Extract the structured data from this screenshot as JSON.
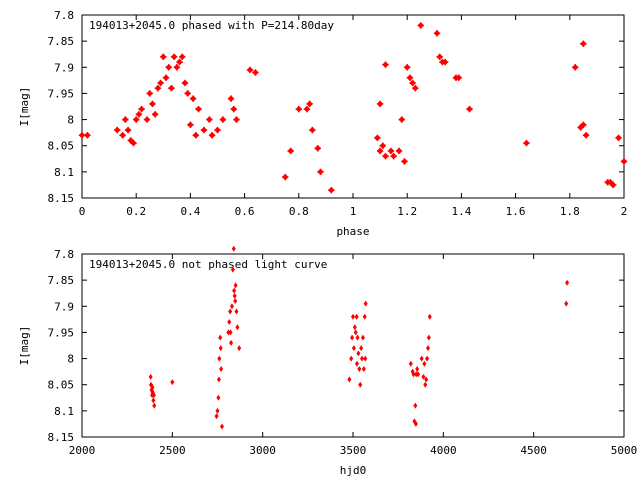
{
  "chart_data": [
    {
      "type": "scatter",
      "title": "194013+2045.0 phased with P=214.80day",
      "xlabel": "phase",
      "ylabel": "I[mag]",
      "xlim": [
        0,
        2
      ],
      "ylim": [
        7.8,
        8.15
      ],
      "y_inverted": true,
      "x_ticks": [
        "0",
        "0.2",
        "0.4",
        "0.6",
        "0.8",
        "1",
        "1.2",
        "1.4",
        "1.6",
        "1.8",
        "2"
      ],
      "y_ticks": [
        "7.8",
        "7.85",
        "7.9",
        "7.95",
        "8",
        "8.05",
        "8.1",
        "8.15"
      ],
      "grid": false,
      "marker_color": "#ff0000",
      "series": [
        {
          "x": [
            0.0,
            0.02,
            0.13,
            0.15,
            0.16,
            0.17,
            0.18,
            0.19,
            0.2,
            0.21,
            0.22,
            0.24,
            0.25,
            0.26,
            0.27,
            0.28,
            0.29,
            0.3,
            0.31,
            0.32,
            0.33,
            0.34,
            0.35,
            0.36,
            0.37,
            0.38,
            0.39,
            0.4,
            0.41,
            0.42,
            0.43,
            0.45,
            0.47,
            0.48,
            0.5,
            0.52,
            0.55,
            0.56,
            0.57,
            0.62,
            0.64,
            0.75,
            0.77,
            0.8,
            0.83,
            0.84,
            0.85,
            0.87,
            0.88,
            0.92,
            1.09,
            1.1,
            1.1,
            1.11,
            1.12,
            1.12,
            1.14,
            1.15,
            1.17,
            1.18,
            1.19,
            1.2,
            1.21,
            1.22,
            1.23,
            1.25,
            1.31,
            1.32,
            1.33,
            1.34,
            1.38,
            1.39,
            1.43,
            1.64,
            1.82,
            1.84,
            1.85,
            1.85,
            1.86,
            1.94,
            1.95,
            1.96,
            1.98,
            2.0
          ],
          "y": [
            8.03,
            8.03,
            8.02,
            8.03,
            8.0,
            8.02,
            8.04,
            8.045,
            8.0,
            7.99,
            7.98,
            8.0,
            7.95,
            7.97,
            7.99,
            7.94,
            7.93,
            7.88,
            7.92,
            7.9,
            7.94,
            7.88,
            7.9,
            7.89,
            7.88,
            7.93,
            7.95,
            8.01,
            7.96,
            8.03,
            7.98,
            8.02,
            8.0,
            8.03,
            8.02,
            8.0,
            7.96,
            7.98,
            8.0,
            7.905,
            7.91,
            8.11,
            8.06,
            7.98,
            7.98,
            7.97,
            8.02,
            8.055,
            8.1,
            8.135,
            8.035,
            7.97,
            8.06,
            8.05,
            7.895,
            8.07,
            8.06,
            8.07,
            8.06,
            8.0,
            8.08,
            7.9,
            7.92,
            7.93,
            7.94,
            7.82,
            7.835,
            7.88,
            7.89,
            7.89,
            7.92,
            7.92,
            7.98,
            8.045,
            7.9,
            8.015,
            7.855,
            8.01,
            8.03,
            8.12,
            8.12,
            8.125,
            8.035,
            8.08
          ]
        }
      ]
    },
    {
      "type": "scatter",
      "title": "194013+2045.0 not phased light curve",
      "xlabel": "hjd0",
      "ylabel": "I[mag]",
      "xlim": [
        2000,
        5000
      ],
      "ylim": [
        7.8,
        8.15
      ],
      "y_inverted": true,
      "x_ticks": [
        "2000",
        "2500",
        "3000",
        "3500",
        "4000",
        "4500",
        "5000"
      ],
      "y_ticks": [
        "7.8",
        "7.85",
        "7.9",
        "7.95",
        "8",
        "8.05",
        "8.1",
        "8.15"
      ],
      "grid": false,
      "marker_color": "#ff0000",
      "series": [
        {
          "x": [
            2380,
            2382,
            2385,
            2388,
            2390,
            2392,
            2395,
            2398,
            2400,
            2500,
            2745,
            2750,
            2755,
            2758,
            2760,
            2765,
            2768,
            2770,
            2775,
            2810,
            2815,
            2820,
            2822,
            2825,
            2830,
            2835,
            2840,
            2842,
            2845,
            2848,
            2850,
            2855,
            2860,
            2870,
            3480,
            3490,
            3495,
            3500,
            3505,
            3510,
            3515,
            3520,
            3522,
            3525,
            3530,
            3535,
            3540,
            3545,
            3550,
            3555,
            3560,
            3565,
            3568,
            3570,
            3820,
            3830,
            3835,
            3840,
            3845,
            3848,
            3850,
            3855,
            3860,
            3880,
            3890,
            3895,
            3900,
            3905,
            3910,
            3915,
            3920,
            3925,
            4680,
            4685
          ],
          "y": [
            8.035,
            8.05,
            8.06,
            8.07,
            8.055,
            8.065,
            8.08,
            8.07,
            8.09,
            8.045,
            8.11,
            8.1,
            8.075,
            8.04,
            8.0,
            7.96,
            7.98,
            8.02,
            8.13,
            7.95,
            7.93,
            7.91,
            7.95,
            7.97,
            7.9,
            7.83,
            7.79,
            7.87,
            7.88,
            7.89,
            7.86,
            7.91,
            7.94,
            7.98,
            8.04,
            8.0,
            7.96,
            7.92,
            7.98,
            7.94,
            7.95,
            7.92,
            8.01,
            7.96,
            7.99,
            8.02,
            8.05,
            7.98,
            8.0,
            7.96,
            8.02,
            7.92,
            8.0,
            7.895,
            8.01,
            8.025,
            8.03,
            8.12,
            8.09,
            8.125,
            8.03,
            8.02,
            8.03,
            8.0,
            8.035,
            8.01,
            8.05,
            8.04,
            8.0,
            7.98,
            7.96,
            7.92,
            7.895,
            7.855
          ]
        }
      ]
    }
  ]
}
